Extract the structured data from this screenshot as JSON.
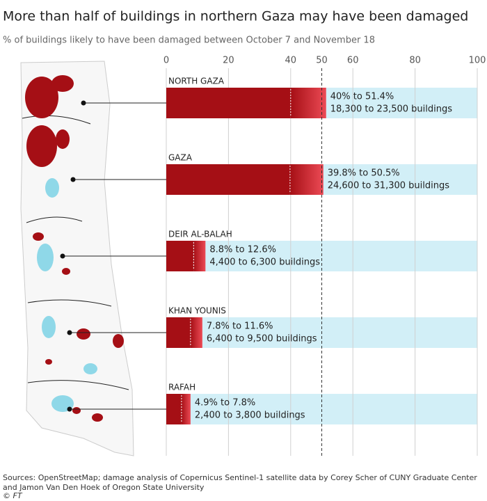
{
  "chart_data": {
    "type": "range-bar",
    "title": "More than half of buildings in northern Gaza may have been damaged",
    "subtitle": "% of buildings likely to have been damaged between October 7 and November 18",
    "categories": [
      "NORTH GAZA",
      "GAZA",
      "DEIR AL-BALAH",
      "KHAN YOUNIS",
      "RAFAH"
    ],
    "series": [
      {
        "color": "#a50f15",
        "values": [
          40,
          39.8,
          8.8,
          7.8,
          4.9
        ]
      },
      {
        "color": "#ec4a55",
        "values": [
          51.4,
          50.5,
          12.6,
          11.6,
          7.8
        ]
      }
    ],
    "range_labels": [
      "40% to 51.4%",
      "39.8% to 50.5%",
      "8.8% to 12.6%",
      "7.8% to 11.6%",
      "4.9% to 7.8%"
    ],
    "building_labels": [
      "18,300 to 23,500 buildings",
      "24,600 to 31,300 buildings",
      "4,400 to 6,300 buildings",
      "6,400 to 9,500 buildings",
      "2,400 to 3,800 buildings"
    ],
    "band_color": "#d2eff7",
    "xlim": [
      0,
      100
    ],
    "xticks": [
      0,
      20,
      40,
      50,
      60,
      80,
      100
    ],
    "dashed_ticks": [
      50
    ],
    "grid": true,
    "source": "Sources: OpenStreetMap; damage analysis of Copernicus Sentinel-1 satellite data by Corey Scher of CUNY Graduate Center and Jamon Van Den Hoek of Oregon State University",
    "credit": "© FT"
  }
}
